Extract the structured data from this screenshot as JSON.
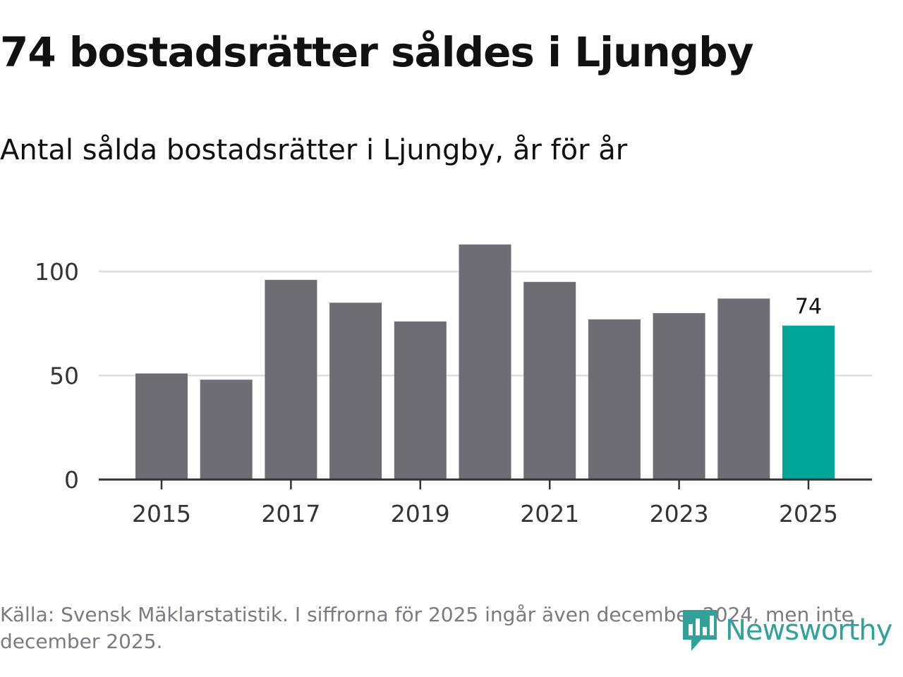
{
  "header": {
    "title": "74 bostadsrätter såldes i Ljungby",
    "subtitle": "Antal sålda bostadsrätter i Ljungby, år för år"
  },
  "footer": {
    "source": "Källa: Svensk Mäklarstatistik. I siffrorna för 2025 ingår även december 2024, men inte december 2025.",
    "logo_text": "Newsworthy"
  },
  "colors": {
    "bar": "#6e6d74",
    "highlight": "#00a59a",
    "grid": "#dddddd",
    "axis": "#333333",
    "text": "#111111",
    "tick_text": "#333333",
    "logo": "#33a199"
  },
  "chart_data": {
    "type": "bar",
    "title": "74 bostadsrätter såldes i Ljungby",
    "subtitle": "Antal sålda bostadsrätter i Ljungby, år för år",
    "xlabel": "",
    "ylabel": "",
    "categories": [
      "2015",
      "2016",
      "2017",
      "2018",
      "2019",
      "2020",
      "2021",
      "2022",
      "2023",
      "2024",
      "2025"
    ],
    "values": [
      51,
      48,
      96,
      85,
      76,
      113,
      95,
      77,
      80,
      87,
      74
    ],
    "x_tick_labels": [
      "2015",
      "2017",
      "2019",
      "2021",
      "2023",
      "2025"
    ],
    "y_ticks": [
      0,
      50,
      100
    ],
    "ylim": [
      0,
      120
    ],
    "highlight_index": 10,
    "data_labels": [
      {
        "index": 10,
        "text": "74"
      }
    ],
    "grid": true,
    "legend": "none"
  }
}
